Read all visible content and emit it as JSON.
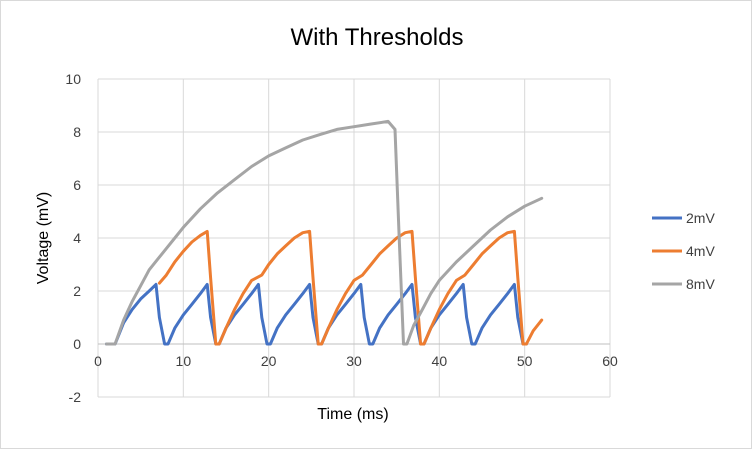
{
  "chart_data": {
    "type": "line",
    "title": "With Thresholds",
    "xlabel": "Time (ms)",
    "ylabel": "Voltage (mV)",
    "xlim": [
      0,
      60
    ],
    "ylim": [
      -2,
      10
    ],
    "x_ticks": [
      0,
      10,
      20,
      30,
      40,
      50,
      60
    ],
    "y_ticks": [
      -2,
      0,
      2,
      4,
      6,
      8,
      10
    ],
    "grid": true,
    "legend_position": "right",
    "series": [
      {
        "name": "2mV",
        "color": "#4472c4",
        "points": [
          [
            1,
            0
          ],
          [
            2,
            0
          ],
          [
            3,
            0.8
          ],
          [
            4,
            1.3
          ],
          [
            5,
            1.7
          ],
          [
            6,
            2.0
          ],
          [
            6.8,
            2.25
          ],
          [
            7.2,
            1.0
          ],
          [
            7.8,
            0
          ],
          [
            8.2,
            0
          ],
          [
            9,
            0.6
          ],
          [
            10,
            1.1
          ],
          [
            11,
            1.5
          ],
          [
            12,
            1.9
          ],
          [
            12.8,
            2.25
          ],
          [
            13.2,
            1.0
          ],
          [
            13.8,
            0
          ],
          [
            14.2,
            0
          ],
          [
            15,
            0.6
          ],
          [
            16,
            1.1
          ],
          [
            17,
            1.5
          ],
          [
            18,
            1.9
          ],
          [
            18.8,
            2.25
          ],
          [
            19.2,
            1.0
          ],
          [
            19.8,
            0
          ],
          [
            20.2,
            0
          ],
          [
            21,
            0.6
          ],
          [
            22,
            1.1
          ],
          [
            23,
            1.5
          ],
          [
            24,
            1.9
          ],
          [
            24.8,
            2.25
          ],
          [
            25.2,
            1.0
          ],
          [
            25.8,
            0
          ],
          [
            26.2,
            0
          ],
          [
            27,
            0.6
          ],
          [
            28,
            1.1
          ],
          [
            29,
            1.5
          ],
          [
            30,
            1.9
          ],
          [
            30.8,
            2.25
          ],
          [
            31.2,
            1.0
          ],
          [
            31.8,
            0
          ],
          [
            32.2,
            0
          ],
          [
            33,
            0.6
          ],
          [
            34,
            1.1
          ],
          [
            35,
            1.5
          ],
          [
            36,
            1.9
          ],
          [
            36.8,
            2.25
          ],
          [
            37.2,
            1.0
          ],
          [
            37.8,
            0
          ],
          [
            38.2,
            0
          ],
          [
            39,
            0.6
          ],
          [
            40,
            1.1
          ],
          [
            41,
            1.5
          ],
          [
            42,
            1.9
          ],
          [
            42.8,
            2.25
          ],
          [
            43.2,
            1.0
          ],
          [
            43.8,
            0
          ],
          [
            44.2,
            0
          ],
          [
            45,
            0.6
          ],
          [
            46,
            1.1
          ],
          [
            47,
            1.5
          ],
          [
            48,
            1.9
          ],
          [
            48.8,
            2.25
          ],
          [
            49.2,
            1.0
          ],
          [
            49.8,
            0
          ],
          [
            50.2,
            0
          ]
        ]
      },
      {
        "name": "4mV",
        "color": "#ed7d31",
        "points": [
          [
            7.2,
            2.3
          ],
          [
            8,
            2.6
          ],
          [
            9,
            3.1
          ],
          [
            10,
            3.5
          ],
          [
            11,
            3.85
          ],
          [
            12,
            4.1
          ],
          [
            12.8,
            4.25
          ],
          [
            13.2,
            2.5
          ],
          [
            13.8,
            0
          ],
          [
            14.2,
            0
          ],
          [
            15,
            0.6
          ],
          [
            16,
            1.3
          ],
          [
            17,
            1.9
          ],
          [
            18,
            2.4
          ],
          [
            19.2,
            2.6
          ],
          [
            20,
            3.0
          ],
          [
            21,
            3.4
          ],
          [
            22,
            3.7
          ],
          [
            23,
            4.0
          ],
          [
            24,
            4.2
          ],
          [
            24.8,
            4.25
          ],
          [
            25.2,
            2.5
          ],
          [
            25.8,
            0
          ],
          [
            26.2,
            0
          ],
          [
            27,
            0.6
          ],
          [
            28,
            1.3
          ],
          [
            29,
            1.9
          ],
          [
            30,
            2.4
          ],
          [
            31,
            2.6
          ],
          [
            32,
            3.0
          ],
          [
            33,
            3.4
          ],
          [
            34,
            3.7
          ],
          [
            35,
            4.0
          ],
          [
            36,
            4.2
          ],
          [
            36.8,
            4.25
          ],
          [
            37.2,
            2.5
          ],
          [
            37.8,
            0
          ],
          [
            38.2,
            0
          ],
          [
            39,
            0.6
          ],
          [
            40,
            1.3
          ],
          [
            41,
            1.9
          ],
          [
            42,
            2.4
          ],
          [
            43,
            2.6
          ],
          [
            44,
            3.0
          ],
          [
            45,
            3.4
          ],
          [
            46,
            3.7
          ],
          [
            47,
            4.0
          ],
          [
            48,
            4.2
          ],
          [
            48.8,
            4.25
          ],
          [
            49.2,
            2.5
          ],
          [
            49.8,
            0
          ],
          [
            50.2,
            0
          ],
          [
            51,
            0.5
          ],
          [
            52,
            0.9
          ]
        ]
      },
      {
        "name": "8mV",
        "color": "#a5a5a5",
        "points": [
          [
            1,
            0
          ],
          [
            2,
            0
          ],
          [
            3,
            0.9
          ],
          [
            4,
            1.6
          ],
          [
            5,
            2.2
          ],
          [
            6,
            2.8
          ],
          [
            7,
            3.2
          ],
          [
            8,
            3.6
          ],
          [
            9,
            4.0
          ],
          [
            10,
            4.4
          ],
          [
            12,
            5.1
          ],
          [
            14,
            5.7
          ],
          [
            16,
            6.2
          ],
          [
            18,
            6.7
          ],
          [
            20,
            7.1
          ],
          [
            22,
            7.4
          ],
          [
            24,
            7.7
          ],
          [
            26,
            7.9
          ],
          [
            28,
            8.1
          ],
          [
            30,
            8.2
          ],
          [
            32,
            8.3
          ],
          [
            34,
            8.4
          ],
          [
            34.8,
            8.1
          ],
          [
            35.3,
            4.0
          ],
          [
            35.8,
            0
          ],
          [
            36.2,
            0
          ],
          [
            37,
            0.7
          ],
          [
            38,
            1.3
          ],
          [
            39,
            1.9
          ],
          [
            40,
            2.4
          ],
          [
            42,
            3.1
          ],
          [
            44,
            3.7
          ],
          [
            46,
            4.3
          ],
          [
            48,
            4.8
          ],
          [
            50,
            5.2
          ],
          [
            52,
            5.5
          ]
        ]
      }
    ]
  }
}
